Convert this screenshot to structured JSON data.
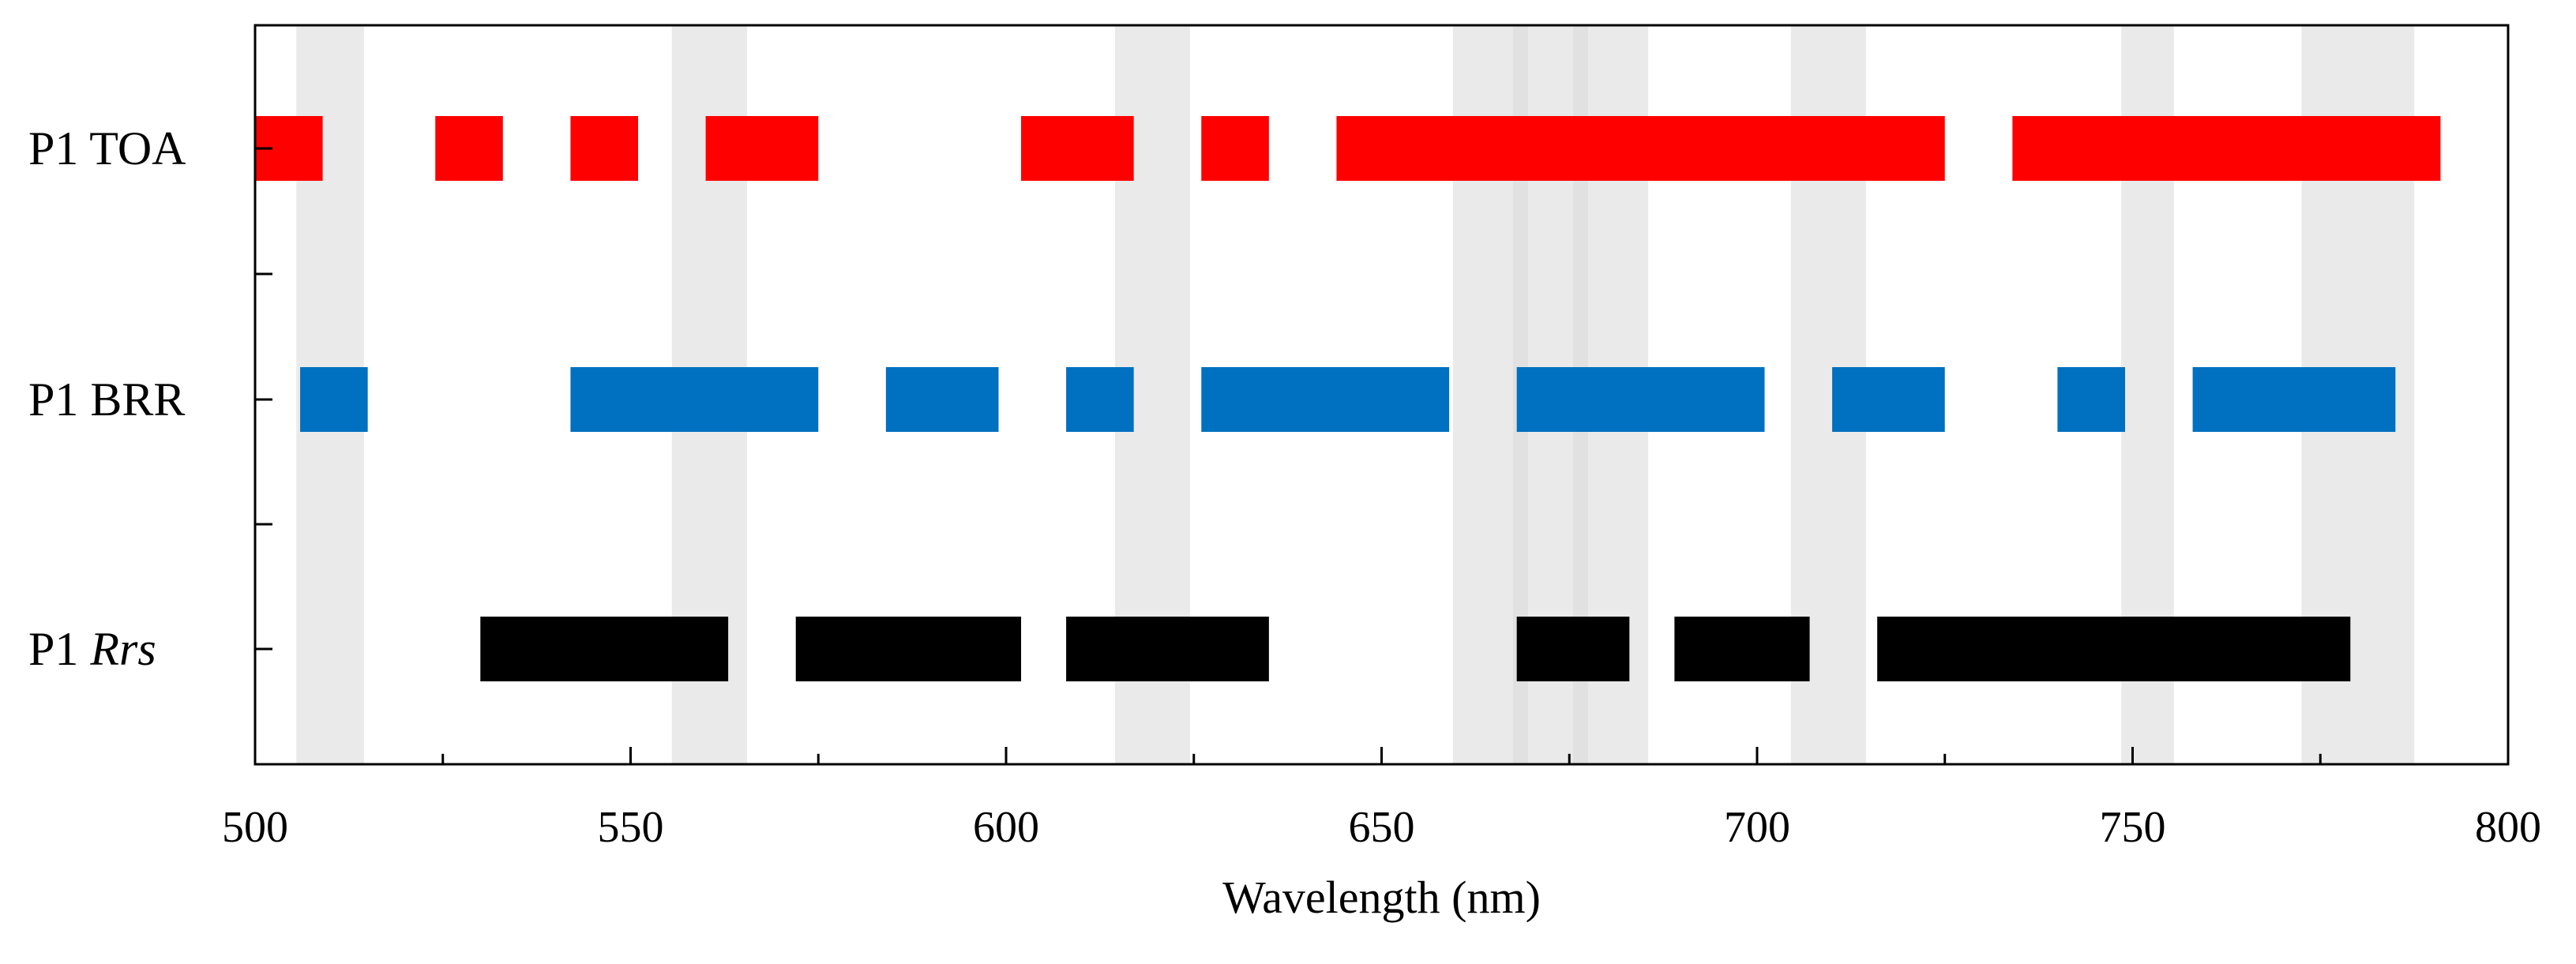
{
  "chart_data": {
    "type": "bar",
    "orientation": "horizontal-ranges",
    "title": "",
    "xlabel": "Wavelength (nm)",
    "ylabel": "",
    "xlim": [
      500,
      800
    ],
    "xticks": [
      500,
      550,
      600,
      650,
      700,
      750,
      800
    ],
    "xtick_labels": [
      "500",
      "550",
      "600",
      "650",
      "700",
      "750",
      "800"
    ],
    "grid": false,
    "series": [
      {
        "name": "P1 TOA",
        "label_main": "P1 TOA",
        "label_italic": "",
        "color": "#ff0000",
        "ranges": [
          [
            500,
            509
          ],
          [
            524,
            533
          ],
          [
            542,
            551
          ],
          [
            560,
            575
          ],
          [
            602,
            617
          ],
          [
            626,
            635
          ],
          [
            644,
            725
          ],
          [
            734,
            791
          ]
        ]
      },
      {
        "name": "P1 BRR",
        "label_main": "P1 BRR",
        "label_italic": "",
        "color": "#0070c0",
        "ranges": [
          [
            506,
            515
          ],
          [
            542,
            575
          ],
          [
            584,
            599
          ],
          [
            608,
            617
          ],
          [
            626,
            659
          ],
          [
            668,
            701
          ],
          [
            710,
            725
          ],
          [
            740,
            749
          ],
          [
            758,
            785
          ]
        ]
      },
      {
        "name": "P1 Rrs",
        "label_main": "P1 ",
        "label_italic": "Rrs",
        "color": "#000000",
        "ranges": [
          [
            530,
            563
          ],
          [
            572,
            602
          ],
          [
            608,
            635
          ],
          [
            668,
            683
          ],
          [
            689,
            707
          ],
          [
            716,
            779
          ]
        ]
      }
    ],
    "shaded_bands": [
      [
        505.5,
        514.5
      ],
      [
        555.5,
        565.5
      ],
      [
        614.5,
        624.5
      ],
      [
        659.5,
        685.5
      ],
      [
        667.5,
        669.5
      ],
      [
        675.5,
        677.5
      ],
      [
        704.5,
        714.5
      ],
      [
        748.5,
        755.5
      ],
      [
        772.5,
        787.5
      ]
    ],
    "colors": {
      "band": "#d9d9d9",
      "axis": "#000000",
      "background": "#ffffff"
    }
  }
}
